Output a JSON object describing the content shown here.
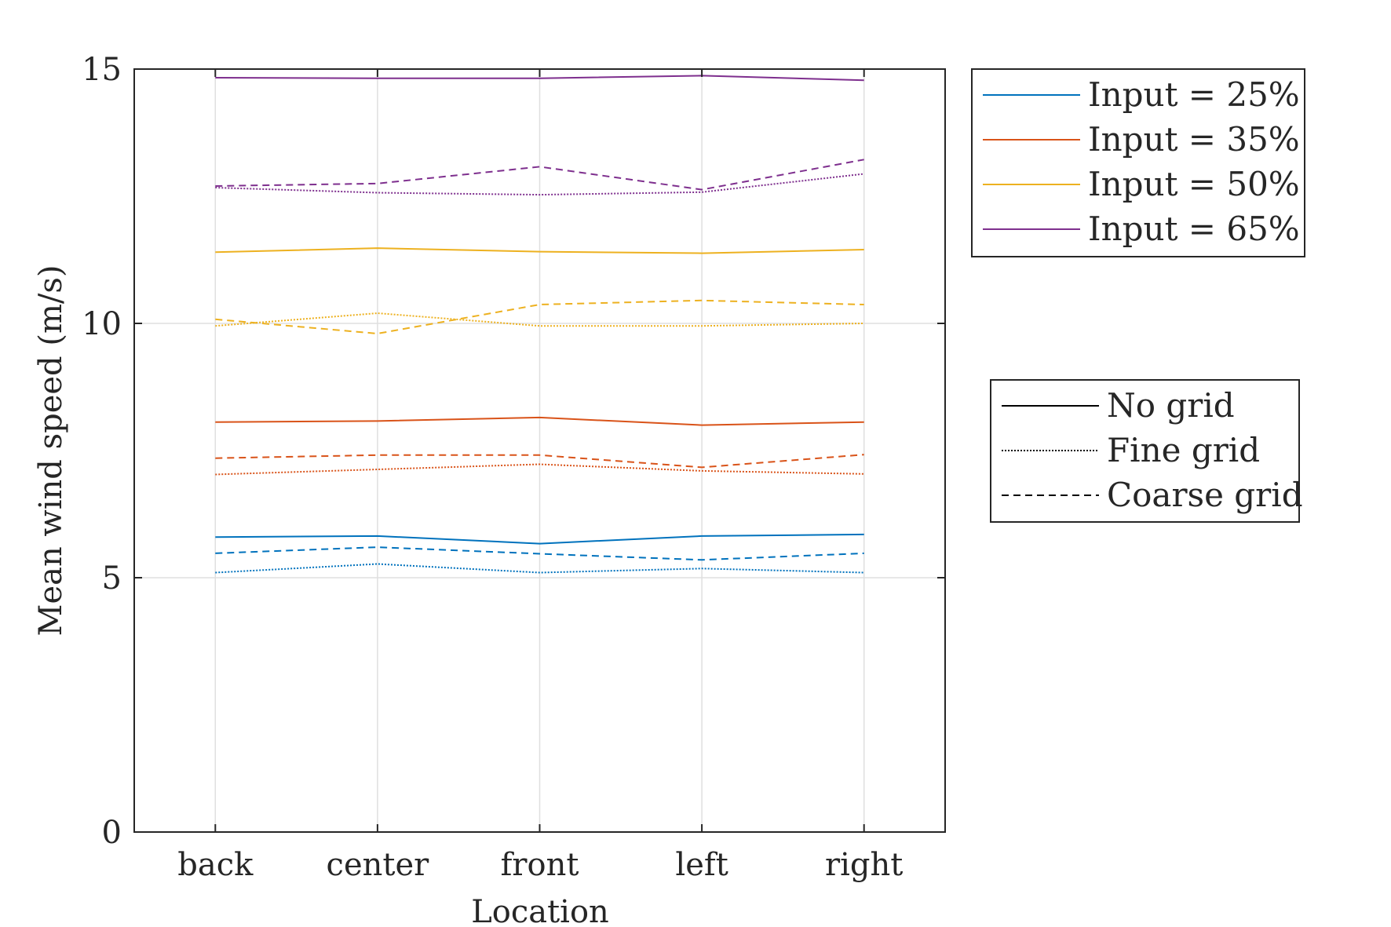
{
  "chart_data": {
    "type": "line",
    "xlabel": "Location",
    "ylabel": "Mean wind speed (m/s)",
    "categories": [
      "back",
      "center",
      "front",
      "left",
      "right"
    ],
    "ylim": [
      0,
      15
    ],
    "yticks": [
      0,
      5,
      10,
      15
    ],
    "grid": true,
    "legend_placement": "outside right",
    "series": [
      {
        "input": "Input = 25%",
        "grid": "No grid",
        "color": "#0072BD",
        "values": [
          5.8,
          5.82,
          5.67,
          5.82,
          5.85
        ]
      },
      {
        "input": "Input = 25%",
        "grid": "Fine grid",
        "color": "#0072BD",
        "values": [
          5.1,
          5.27,
          5.1,
          5.18,
          5.1
        ]
      },
      {
        "input": "Input = 25%",
        "grid": "Coarse grid",
        "color": "#0072BD",
        "values": [
          5.48,
          5.6,
          5.47,
          5.35,
          5.48
        ]
      },
      {
        "input": "Input = 35%",
        "grid": "No grid",
        "color": "#D95319",
        "values": [
          8.06,
          8.08,
          8.15,
          8.0,
          8.06
        ]
      },
      {
        "input": "Input = 35%",
        "grid": "Fine grid",
        "color": "#D95319",
        "values": [
          7.03,
          7.13,
          7.23,
          7.1,
          7.04
        ]
      },
      {
        "input": "Input = 35%",
        "grid": "Coarse grid",
        "color": "#D95319",
        "values": [
          7.35,
          7.41,
          7.41,
          7.17,
          7.42
        ]
      },
      {
        "input": "Input = 50%",
        "grid": "No grid",
        "color": "#EDB120",
        "values": [
          11.4,
          11.48,
          11.41,
          11.38,
          11.45
        ]
      },
      {
        "input": "Input = 50%",
        "grid": "Fine grid",
        "color": "#EDB120",
        "values": [
          9.95,
          10.2,
          9.95,
          9.95,
          10.0
        ]
      },
      {
        "input": "Input = 50%",
        "grid": "Coarse grid",
        "color": "#EDB120",
        "values": [
          10.08,
          9.8,
          10.37,
          10.45,
          10.37
        ]
      },
      {
        "input": "Input = 65%",
        "grid": "No grid",
        "color": "#7E2F8E",
        "values": [
          14.83,
          14.82,
          14.82,
          14.87,
          14.78
        ]
      },
      {
        "input": "Input = 65%",
        "grid": "Fine grid",
        "color": "#7E2F8E",
        "values": [
          12.67,
          12.57,
          12.53,
          12.58,
          12.94
        ]
      },
      {
        "input": "Input = 65%",
        "grid": "Coarse grid",
        "color": "#7E2F8E",
        "values": [
          12.7,
          12.75,
          13.08,
          12.63,
          13.22
        ]
      }
    ],
    "legend_color": [
      {
        "label": "Input = 25%",
        "color": "#0072BD"
      },
      {
        "label": "Input = 35%",
        "color": "#D95319"
      },
      {
        "label": "Input = 50%",
        "color": "#EDB120"
      },
      {
        "label": "Input = 65%",
        "color": "#7E2F8E"
      }
    ],
    "legend_style": [
      {
        "label": "No grid",
        "style": "solid"
      },
      {
        "label": "Fine grid",
        "style": "dotted"
      },
      {
        "label": "Coarse grid",
        "style": "dashed"
      }
    ]
  }
}
